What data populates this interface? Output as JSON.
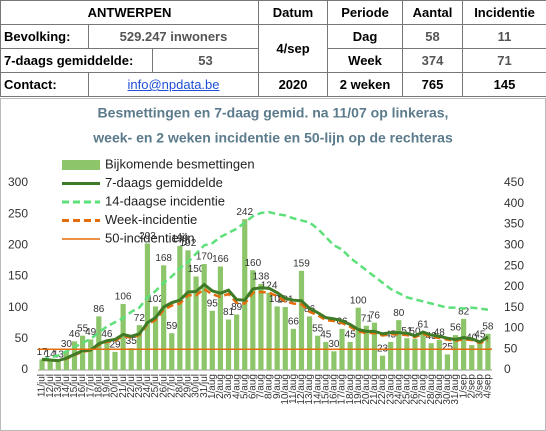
{
  "table": {
    "header": [
      "ANTWERPEN",
      "Datum",
      "Periode",
      "Aantal",
      "Incidentie"
    ],
    "rows": [
      [
        "Bevolking:",
        "529.247 inwoners",
        "4/sep",
        "Dag",
        "58",
        "11"
      ],
      [
        "7-daags gemiddelde:",
        "53",
        "Week",
        "374",
        "71"
      ],
      [
        "Contact:",
        "info@npdata.be",
        "2020",
        "2 weken",
        "765",
        "145"
      ]
    ]
  },
  "chart_data": {
    "type": "bar",
    "title": [
      "Besmettingen en 7-daag gemid. na 11/07 op linkeras,",
      "week- en 2 weken incidentie en 50-lijn op de rechteras"
    ],
    "categories": [
      "11/jul",
      "12/jul",
      "13/jul",
      "14/jul",
      "15/jul",
      "16/jul",
      "17/jul",
      "18/jul",
      "19/jul",
      "20/jul",
      "21/jul",
      "22/jul",
      "23/jul",
      "24/jul",
      "25/jul",
      "26/jul",
      "27/jul",
      "28/jul",
      "29/jul",
      "30/jul",
      "31/jul",
      "1/aug",
      "2/aug",
      "3/aug",
      "4/aug",
      "5/aug",
      "6/aug",
      "7/aug",
      "8/aug",
      "9/aug",
      "10/aug",
      "11/aug",
      "12/aug",
      "13/aug",
      "14/aug",
      "15/aug",
      "16/aug",
      "17/aug",
      "18/aug",
      "19/aug",
      "20/aug",
      "21/aug",
      "22/aug",
      "23/aug",
      "24/aug",
      "25/aug",
      "26/aug",
      "27/aug",
      "28/aug",
      "29/aug",
      "30/aug",
      "31/aug",
      "1/sep",
      "2/sep",
      "3/sep",
      "4/sep"
    ],
    "ylim": [
      0,
      300
    ],
    "yticks": [
      0,
      50,
      100,
      150,
      200,
      250,
      300
    ],
    "y2lim": [
      0,
      450
    ],
    "y2ticks": [
      0,
      50,
      100,
      150,
      200,
      250,
      300,
      350,
      400,
      450
    ],
    "grid": false,
    "series": [
      {
        "name": "Bijkomende besmettingen",
        "kind": "bar",
        "color": "#8cc56a",
        "values": [
          17,
          14,
          13,
          30,
          46,
          55,
          49,
          86,
          46,
          29,
          106,
          35,
          72,
          203,
          102,
          168,
          59,
          199,
          192,
          150,
          170,
          95,
          166,
          81,
          89,
          242,
          160,
          138,
          124,
          102,
          101,
          66,
          159,
          86,
          55,
          45,
          30,
          66,
          45,
          100,
          71,
          76,
          23,
          45,
          80,
          51,
          50,
          61,
          43,
          48,
          25,
          56,
          82,
          40,
          45,
          58
        ]
      },
      {
        "name": "7-daags gemiddelde",
        "kind": "line",
        "color": "#3f7a26",
        "values": [
          17,
          16,
          15,
          19,
          25,
          31,
          32,
          42,
          47,
          49,
          57,
          54,
          58,
          76,
          84,
          101,
          108,
          112,
          125,
          126,
          137,
          127,
          123,
          128,
          113,
          112,
          130,
          132,
          131,
          124,
          115,
          112,
          111,
          99,
          92,
          84,
          82,
          79,
          73,
          65,
          62,
          62,
          58,
          60,
          60,
          59,
          55,
          61,
          56,
          54,
          51,
          49,
          52,
          50,
          45,
          53
        ]
      },
      {
        "name": "14-daagse incidentie",
        "kind": "dashed",
        "axis": "y2",
        "color": "#5de07a",
        "values": [
          25,
          30,
          35,
          45,
          55,
          65,
          75,
          90,
          105,
          115,
          125,
          140,
          150,
          175,
          190,
          210,
          225,
          245,
          260,
          280,
          300,
          305,
          320,
          330,
          340,
          355,
          370,
          378,
          380,
          375,
          372,
          365,
          360,
          355,
          340,
          320,
          300,
          290,
          270,
          255,
          240,
          225,
          210,
          195,
          185,
          175,
          170,
          165,
          160,
          155,
          150,
          150,
          148,
          150,
          148,
          145
        ]
      },
      {
        "name": "Week-incidentie",
        "kind": "dashed",
        "axis": "y2",
        "color": "#e46c0a",
        "values": [
          25,
          23,
          22,
          27,
          36,
          44,
          47,
          60,
          68,
          70,
          82,
          78,
          84,
          110,
          120,
          145,
          155,
          160,
          180,
          180,
          195,
          182,
          176,
          183,
          162,
          160,
          186,
          188,
          186,
          178,
          165,
          160,
          158,
          140,
          132,
          120,
          118,
          113,
          104,
          93,
          89,
          89,
          83,
          86,
          86,
          84,
          79,
          87,
          80,
          77,
          73,
          70,
          74,
          72,
          65,
          71
        ]
      },
      {
        "name": "50-incidentielijn",
        "kind": "hline",
        "axis": "y2",
        "color": "#e46c0a",
        "value": 50
      }
    ]
  }
}
